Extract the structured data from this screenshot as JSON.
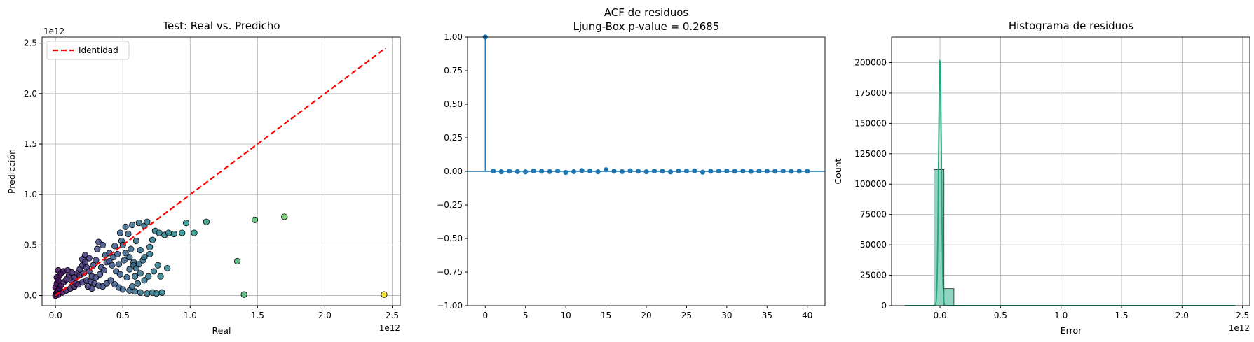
{
  "chart_data": [
    {
      "type": "scatter",
      "title": "Test: Real vs. Predicho",
      "xlabel": "Real",
      "ylabel": "Predicción",
      "x_offset_label": "1e12",
      "y_offset_label": "1e12",
      "xlim": [
        -0.1,
        2.56
      ],
      "ylim": [
        -0.1,
        2.56
      ],
      "xticks": [
        0.0,
        0.5,
        1.0,
        1.5,
        2.0,
        2.5
      ],
      "yticks": [
        0.0,
        0.5,
        1.0,
        1.5,
        2.0,
        2.5
      ],
      "tick_labels": [
        "0.0",
        "0.5",
        "1.0",
        "1.5",
        "2.0",
        "2.5"
      ],
      "grid": true,
      "legend": {
        "position": "top-left",
        "entries": [
          "Identidad"
        ]
      },
      "identity_line": {
        "name": "Identidad",
        "color": "#ff0000",
        "dash": true,
        "from": [
          0,
          0
        ],
        "to": [
          2.45,
          2.45
        ]
      },
      "colormap": "viridis",
      "points": [
        [
          2.44,
          0.01
        ],
        [
          1.7,
          0.78
        ],
        [
          1.48,
          0.75
        ],
        [
          1.35,
          0.34
        ],
        [
          1.4,
          0.01
        ],
        [
          1.12,
          0.73
        ],
        [
          0.97,
          0.72
        ],
        [
          1.03,
          0.62
        ],
        [
          0.94,
          0.62
        ],
        [
          0.88,
          0.61
        ],
        [
          0.84,
          0.62
        ],
        [
          0.81,
          0.6
        ],
        [
          0.77,
          0.62
        ],
        [
          0.74,
          0.64
        ],
        [
          0.72,
          0.55
        ],
        [
          0.7,
          0.48
        ],
        [
          0.7,
          0.41
        ],
        [
          0.66,
          0.38
        ],
        [
          0.65,
          0.35
        ],
        [
          0.62,
          0.31
        ],
        [
          0.63,
          0.45
        ],
        [
          0.6,
          0.54
        ],
        [
          0.56,
          0.46
        ],
        [
          0.57,
          0.7
        ],
        [
          0.62,
          0.72
        ],
        [
          0.66,
          0.69
        ],
        [
          0.68,
          0.73
        ],
        [
          0.54,
          0.61
        ],
        [
          0.49,
          0.54
        ],
        [
          0.44,
          0.49
        ],
        [
          0.4,
          0.42
        ],
        [
          0.37,
          0.4
        ],
        [
          0.35,
          0.5
        ],
        [
          0.31,
          0.46
        ],
        [
          0.32,
          0.53
        ],
        [
          0.52,
          0.68
        ],
        [
          0.48,
          0.62
        ],
        [
          0.5,
          0.5
        ],
        [
          0.52,
          0.42
        ],
        [
          0.55,
          0.38
        ],
        [
          0.58,
          0.33
        ],
        [
          0.6,
          0.27
        ],
        [
          0.63,
          0.22
        ],
        [
          0.59,
          0.19
        ],
        [
          0.53,
          0.18
        ],
        [
          0.48,
          0.21
        ],
        [
          0.45,
          0.24
        ],
        [
          0.42,
          0.3
        ],
        [
          0.4,
          0.34
        ],
        [
          0.38,
          0.33
        ],
        [
          0.36,
          0.25
        ],
        [
          0.33,
          0.21
        ],
        [
          0.3,
          0.18
        ],
        [
          0.27,
          0.19
        ],
        [
          0.25,
          0.24
        ],
        [
          0.23,
          0.28
        ],
        [
          0.22,
          0.33
        ],
        [
          0.2,
          0.3
        ],
        [
          0.18,
          0.26
        ],
        [
          0.16,
          0.22
        ],
        [
          0.14,
          0.18
        ],
        [
          0.12,
          0.23
        ],
        [
          0.1,
          0.2
        ],
        [
          0.08,
          0.16
        ],
        [
          0.06,
          0.13
        ],
        [
          0.04,
          0.1
        ],
        [
          0.03,
          0.07
        ],
        [
          0.02,
          0.05
        ],
        [
          0.01,
          0.03
        ],
        [
          0.005,
          0.02
        ],
        [
          0.0,
          0.0
        ],
        [
          0.02,
          0.01
        ],
        [
          0.05,
          0.03
        ],
        [
          0.08,
          0.05
        ],
        [
          0.11,
          0.07
        ],
        [
          0.14,
          0.09
        ],
        [
          0.17,
          0.11
        ],
        [
          0.2,
          0.13
        ],
        [
          0.23,
          0.15
        ],
        [
          0.26,
          0.14
        ],
        [
          0.29,
          0.12
        ],
        [
          0.32,
          0.1
        ],
        [
          0.35,
          0.09
        ],
        [
          0.38,
          0.12
        ],
        [
          0.41,
          0.15
        ],
        [
          0.44,
          0.11
        ],
        [
          0.47,
          0.08
        ],
        [
          0.5,
          0.06
        ],
        [
          0.55,
          0.05
        ],
        [
          0.59,
          0.04
        ],
        [
          0.63,
          0.03
        ],
        [
          0.68,
          0.02
        ],
        [
          0.72,
          0.03
        ],
        [
          0.75,
          0.02
        ],
        [
          0.79,
          0.03
        ],
        [
          0.57,
          0.09
        ],
        [
          0.61,
          0.12
        ],
        [
          0.66,
          0.15
        ],
        [
          0.69,
          0.19
        ],
        [
          0.73,
          0.24
        ],
        [
          0.78,
          0.19
        ],
        [
          0.83,
          0.27
        ],
        [
          0.76,
          0.3
        ],
        [
          0.58,
          0.3
        ],
        [
          0.55,
          0.26
        ],
        [
          0.02,
          0.25
        ],
        [
          0.04,
          0.22
        ],
        [
          0.06,
          0.24
        ],
        [
          0.09,
          0.25
        ],
        [
          0.12,
          0.15
        ],
        [
          0.15,
          0.12
        ],
        [
          0.18,
          0.2
        ],
        [
          0.21,
          0.22
        ],
        [
          0.24,
          0.09
        ],
        [
          0.27,
          0.07
        ],
        [
          0.01,
          0.12
        ],
        [
          0.01,
          0.18
        ],
        [
          0.02,
          0.15
        ],
        [
          0.0,
          0.08
        ],
        [
          0.03,
          0.2
        ],
        [
          0.28,
          0.3
        ],
        [
          0.3,
          0.35
        ],
        [
          0.25,
          0.37
        ],
        [
          0.22,
          0.4
        ],
        [
          0.2,
          0.36
        ],
        [
          0.34,
          0.28
        ],
        [
          0.43,
          0.38
        ],
        [
          0.46,
          0.41
        ],
        [
          0.51,
          0.35
        ],
        [
          0.47,
          0.31
        ]
      ]
    },
    {
      "type": "line",
      "title": "ACF de residuos\nLjung-Box p-value = 0.2685",
      "title_lines": [
        "ACF de residuos",
        "Ljung-Box p-value = 0.2685"
      ],
      "xlim": [
        -2.2,
        42.2
      ],
      "ylim": [
        -1.0,
        1.0
      ],
      "xticks": [
        0,
        5,
        10,
        15,
        20,
        25,
        30,
        35,
        40
      ],
      "yticks": [
        1.0,
        0.75,
        0.5,
        0.25,
        0.0,
        -0.25,
        -0.5,
        -0.75,
        -1.0
      ],
      "ytick_labels": [
        "1.00",
        "0.75",
        "0.50",
        "0.25",
        "0.00",
        "−0.25",
        "−0.50",
        "−0.75",
        "−1.00"
      ],
      "grid": false,
      "color": "#1f77b4",
      "x": [
        0,
        1,
        2,
        3,
        4,
        5,
        6,
        7,
        8,
        9,
        10,
        11,
        12,
        13,
        14,
        15,
        16,
        17,
        18,
        19,
        20,
        21,
        22,
        23,
        24,
        25,
        26,
        27,
        28,
        29,
        30,
        31,
        32,
        33,
        34,
        35,
        36,
        37,
        38,
        39,
        40
      ],
      "values": [
        1.0,
        0.002,
        -0.003,
        0.001,
        -0.002,
        -0.004,
        0.003,
        0.001,
        -0.002,
        0.002,
        -0.008,
        -0.002,
        0.006,
        0.003,
        -0.003,
        0.012,
        0.001,
        -0.002,
        0.004,
        0.001,
        -0.003,
        0.002,
        0.001,
        -0.004,
        0.003,
        0.002,
        0.004,
        -0.006,
        0.001,
        0.002,
        0.003,
        0.001,
        0.002,
        -0.001,
        0.002,
        0.001,
        0.001,
        0.002,
        0.0,
        0.001,
        0.001
      ]
    },
    {
      "type": "bar",
      "title": "Histograma de residuos",
      "xlabel": "Error",
      "ylabel": "Count",
      "x_offset_label": "1e12",
      "xlim": [
        -0.4,
        2.56
      ],
      "ylim": [
        0,
        221000
      ],
      "xticks": [
        0.0,
        0.5,
        1.0,
        1.5,
        2.0,
        2.5
      ],
      "xtick_labels": [
        "0.0",
        "0.5",
        "1.0",
        "1.5",
        "2.0",
        "2.5"
      ],
      "yticks": [
        0,
        25000,
        50000,
        75000,
        100000,
        125000,
        150000,
        175000,
        200000
      ],
      "ytick_labels": [
        "0",
        "25000",
        "50000",
        "75000",
        "100000",
        "125000",
        "150000",
        "175000",
        "200000"
      ],
      "grid": true,
      "bar_color": "#8fd4c0",
      "kde_color": "#21a87f",
      "bins": [
        {
          "x0": -0.29,
          "x1": -0.21,
          "count": 0
        },
        {
          "x0": -0.21,
          "x1": -0.13,
          "count": 0
        },
        {
          "x0": -0.13,
          "x1": -0.05,
          "count": 0
        },
        {
          "x0": -0.05,
          "x1": 0.033,
          "count": 112000
        },
        {
          "x0": 0.033,
          "x1": 0.115,
          "count": 14000
        },
        {
          "x0": 0.115,
          "x1": 0.2,
          "count": 150
        },
        {
          "x0": 0.2,
          "x1": 2.44,
          "count": 40
        }
      ],
      "kde": {
        "peak_x": 0.0,
        "peak_count": 211000
      }
    }
  ]
}
